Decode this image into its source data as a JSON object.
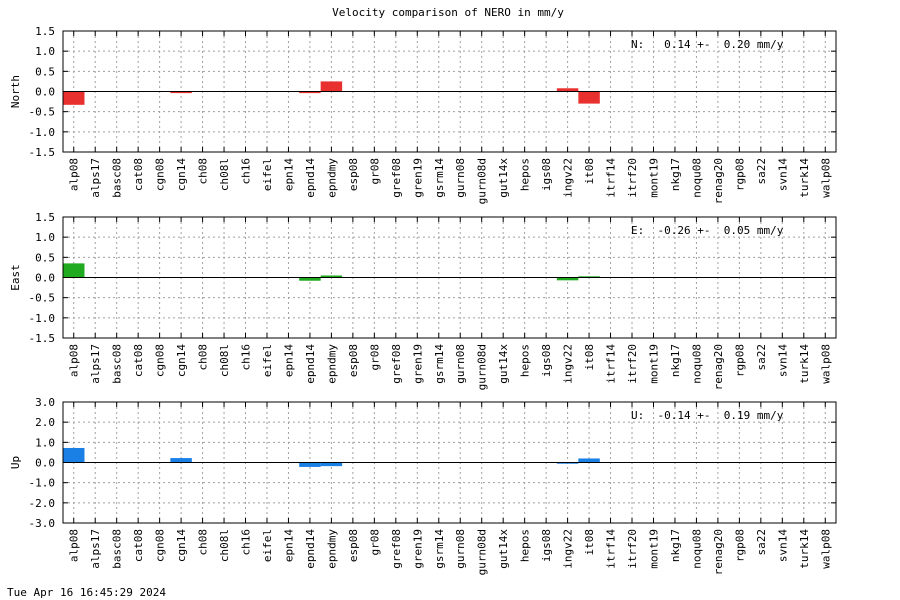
{
  "chart_data": {
    "type": "bar",
    "title": "Velocity comparison of NERO in mm/y",
    "categories": [
      "alp08",
      "alps17",
      "basc08",
      "cat08",
      "cgn08",
      "cgn14",
      "ch08",
      "ch08l",
      "ch16",
      "eifel",
      "epn14",
      "epnd14",
      "epndmy",
      "esp08",
      "gr08",
      "gref08",
      "gren19",
      "gsrm14",
      "gurn08",
      "gurn08d",
      "gut14x",
      "hepos",
      "igs08",
      "ingv22",
      "it08",
      "itrf14",
      "itrf20",
      "mont19",
      "nkg17",
      "noqu08",
      "renag20",
      "rgp08",
      "sa22",
      "svn14",
      "turk14",
      "walp08"
    ],
    "grid": true,
    "panels": [
      {
        "id": "north",
        "ylabel": "North",
        "ylim": [
          -1.5,
          1.5
        ],
        "yticks": [
          -1.5,
          -1.0,
          -0.5,
          0.0,
          0.5,
          1.0,
          1.5
        ],
        "ytick_labels": [
          "-1.5",
          "-1.0",
          "-0.5",
          "0.0",
          "0.5",
          "1.0",
          "1.5"
        ],
        "color": "#e8302f",
        "annotation": "N:   0.14 +-  0.20 mm/y",
        "values": [
          -0.33,
          0,
          0,
          0,
          0,
          -0.04,
          0,
          0,
          0,
          0,
          0,
          -0.04,
          0.25,
          0,
          0,
          0,
          0,
          0,
          0,
          0,
          0,
          0,
          0,
          0.08,
          -0.3,
          0,
          0,
          0,
          0,
          0,
          0,
          0,
          0,
          0,
          0,
          0
        ]
      },
      {
        "id": "east",
        "ylabel": "East",
        "ylim": [
          -1.5,
          1.5
        ],
        "yticks": [
          -1.5,
          -1.0,
          -0.5,
          0.0,
          0.5,
          1.0,
          1.5
        ],
        "ytick_labels": [
          "-1.5",
          "-1.0",
          "-0.5",
          "0.0",
          "0.5",
          "1.0",
          "1.5"
        ],
        "color": "#1faa1f",
        "annotation": "E:  -0.26 +-  0.05 mm/y",
        "values": [
          0.35,
          0,
          0,
          0,
          0,
          0,
          0,
          0,
          0,
          0,
          0,
          -0.08,
          0.05,
          0,
          0,
          0,
          0,
          0,
          0,
          0,
          0,
          0,
          0,
          -0.07,
          0.03,
          0,
          0,
          0,
          0,
          0,
          0,
          0,
          0,
          0,
          0,
          0
        ]
      },
      {
        "id": "up",
        "ylabel": "Up",
        "ylim": [
          -3.0,
          3.0
        ],
        "yticks": [
          -3.0,
          -2.0,
          -1.0,
          0.0,
          1.0,
          2.0,
          3.0
        ],
        "ytick_labels": [
          "-3.0",
          "-2.0",
          "-1.0",
          "0.0",
          "1.0",
          "2.0",
          "3.0"
        ],
        "color": "#1a80e6",
        "annotation": "U:  -0.14 +-  0.19 mm/y",
        "values": [
          0.72,
          0,
          0,
          0,
          0,
          0.22,
          0,
          0,
          0,
          0,
          0,
          -0.22,
          -0.18,
          0,
          0,
          0,
          0,
          0,
          0,
          0,
          0,
          0,
          0,
          -0.06,
          0.2,
          0,
          0,
          0,
          0,
          0,
          0,
          0,
          0,
          0,
          0,
          0
        ]
      }
    ]
  },
  "footer": {
    "timestamp": "Tue Apr 16 16:45:29 2024"
  }
}
